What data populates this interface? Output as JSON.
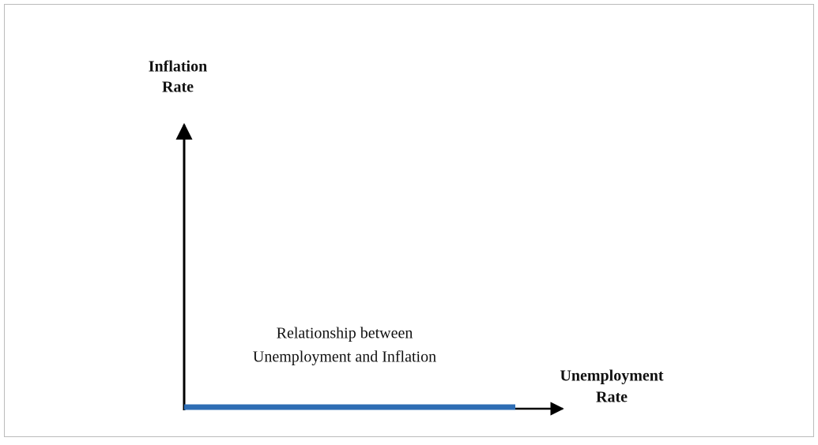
{
  "diagram": {
    "y_axis_label": [
      "Inflation",
      "Rate"
    ],
    "x_axis_label": [
      "Unemployment",
      "Rate"
    ],
    "annotation": [
      "Relationship between",
      "Unemployment and Inflation"
    ]
  }
}
